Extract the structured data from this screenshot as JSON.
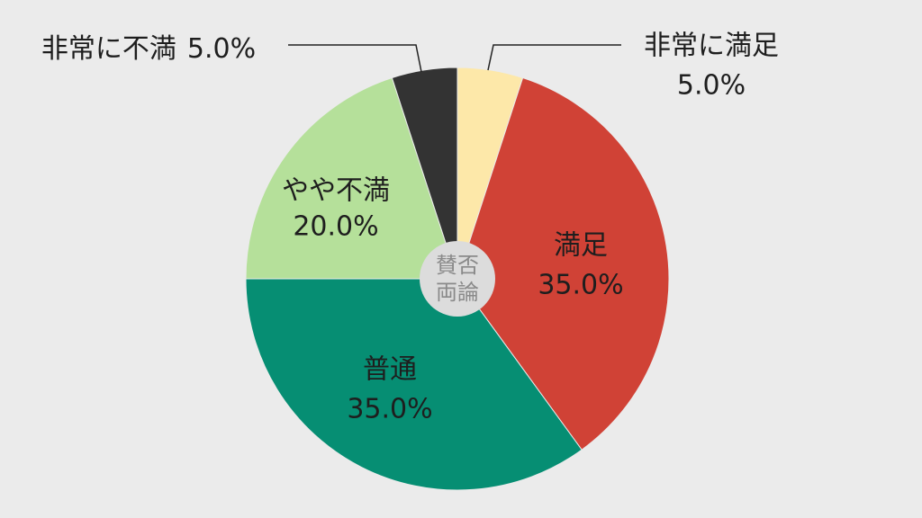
{
  "chart_data": {
    "type": "pie",
    "categories": [
      "非常に満足",
      "満足",
      "普通",
      "やや不満",
      "非常に不満"
    ],
    "values": [
      5,
      35,
      35,
      20,
      5
    ],
    "value_labels": [
      "5.0%",
      "35.0%",
      "35.0%",
      "20.0%",
      "5.0%"
    ],
    "colors": [
      "#fde8a9",
      "#d04236",
      "#068e73",
      "#b5e09a",
      "#333333"
    ],
    "center_label": [
      "賛否",
      "両論"
    ]
  }
}
